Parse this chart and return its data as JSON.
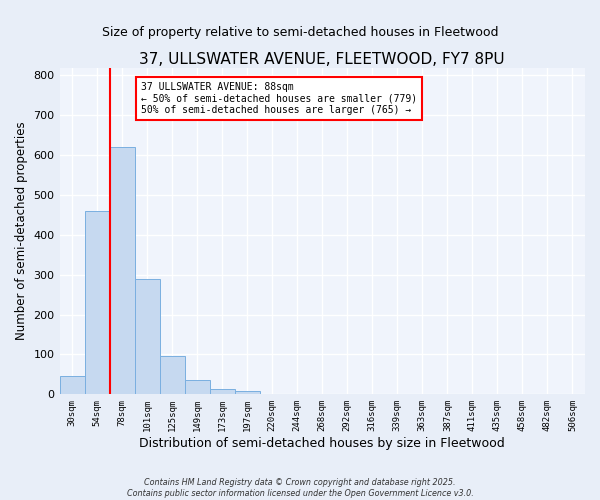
{
  "title": "37, ULLSWATER AVENUE, FLEETWOOD, FY7 8PU",
  "subtitle": "Size of property relative to semi-detached houses in Fleetwood",
  "xlabel": "Distribution of semi-detached houses by size in Fleetwood",
  "ylabel": "Number of semi-detached properties",
  "bar_labels": [
    "30sqm",
    "54sqm",
    "78sqm",
    "101sqm",
    "125sqm",
    "149sqm",
    "173sqm",
    "197sqm",
    "220sqm",
    "244sqm",
    "268sqm",
    "292sqm",
    "316sqm",
    "339sqm",
    "363sqm",
    "387sqm",
    "411sqm",
    "435sqm",
    "458sqm",
    "482sqm",
    "506sqm"
  ],
  "bar_values": [
    45,
    460,
    620,
    290,
    95,
    35,
    13,
    8,
    0,
    0,
    0,
    0,
    0,
    0,
    0,
    0,
    0,
    0,
    0,
    0,
    0
  ],
  "bar_color": "#c6d9f0",
  "bar_edge_color": "#7aafe0",
  "vline_x": 2.0,
  "vline_color": "red",
  "annotation_title": "37 ULLSWATER AVENUE: 88sqm",
  "annotation_line1": "← 50% of semi-detached houses are smaller (779)",
  "annotation_line2": "50% of semi-detached houses are larger (765) →",
  "annotation_box_color": "white",
  "annotation_box_edge_color": "red",
  "ylim": [
    0,
    820
  ],
  "yticks": [
    0,
    100,
    200,
    300,
    400,
    500,
    600,
    700,
    800
  ],
  "footer1": "Contains HM Land Registry data © Crown copyright and database right 2025.",
  "footer2": "Contains public sector information licensed under the Open Government Licence v3.0.",
  "bg_color": "#e8eef8",
  "plot_bg_color": "#f0f4fc",
  "grid_color": "#ffffff"
}
